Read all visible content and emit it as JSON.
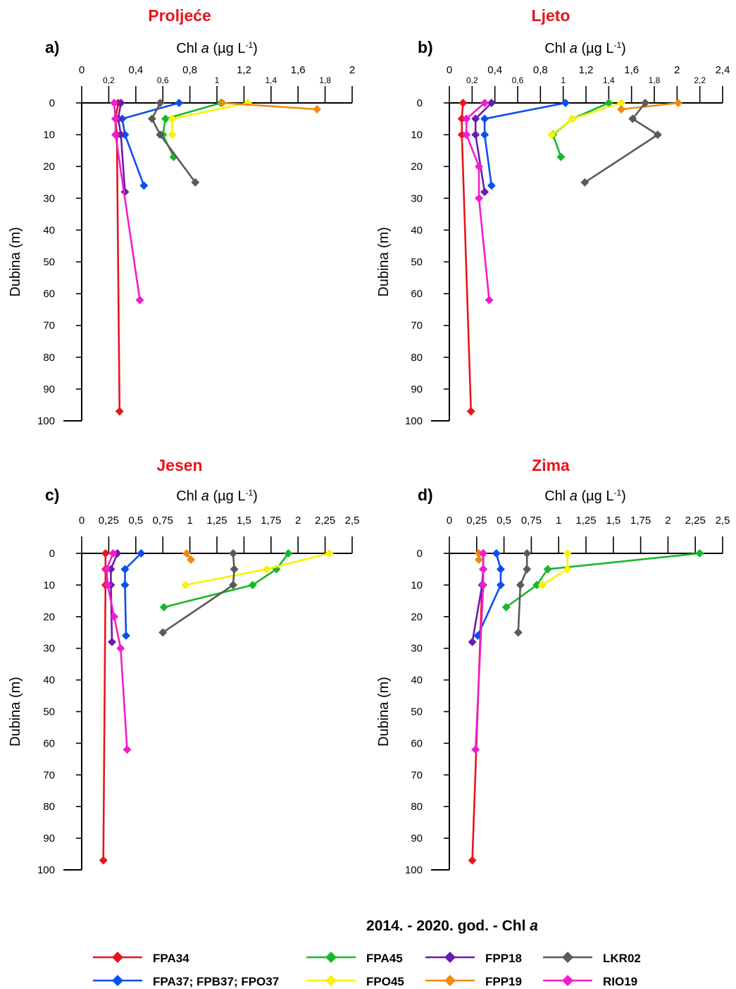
{
  "colors": {
    "FPA34": "#e8141a",
    "FPA37": "#0a4ff0",
    "FPA45": "#18b82a",
    "FPO45": "#f7f208",
    "FPP18": "#6a1bb0",
    "FPP19": "#f08a10",
    "LKR02": "#5a5a5a",
    "RIO19": "#f21ccf",
    "title": "#e8141a"
  },
  "legend": {
    "title": "2014. - 2020. god. - Chl a",
    "title_main": "2014. - 2020. god. - Chl ",
    "title_italic": "a",
    "entries": [
      {
        "key": "FPA34",
        "label": "FPA34"
      },
      {
        "key": "FPA45",
        "label": "FPA45"
      },
      {
        "key": "FPP18",
        "label": "FPP18"
      },
      {
        "key": "LKR02",
        "label": "LKR02"
      },
      {
        "key": "FPA37",
        "label": "FPA37; FPB37; FPO37"
      },
      {
        "key": "FPO45",
        "label": "FPO45"
      },
      {
        "key": "FPP19",
        "label": "FPP19"
      },
      {
        "key": "RIO19",
        "label": "RIO19"
      }
    ]
  },
  "axis_text": {
    "xlabel_main": "Chl ",
    "xlabel_italic": "a",
    "xlabel_unit": " (µg L",
    "xlabel_sup": "-1",
    "xlabel_close": ")",
    "ylabel": "Dubina (m)"
  },
  "chart_data": [
    {
      "type": "line",
      "panel": "a)",
      "title": "Proljeće",
      "xlabel": "Chl a (µg L-1)",
      "ylabel": "Dubina (m)",
      "xlim": [
        0,
        2
      ],
      "ylim": [
        0,
        100
      ],
      "x_ticks_top": [
        "0",
        "0,4",
        "0,8",
        "1,2",
        "1,6",
        "2"
      ],
      "x_ticks_bottom": [
        "0,2",
        "0,6",
        "1",
        "1,4",
        "1,8"
      ],
      "y_ticks": [
        "0",
        "10",
        "20",
        "30",
        "40",
        "50",
        "60",
        "70",
        "80",
        "90",
        "100"
      ],
      "series": [
        {
          "key": "FPA34",
          "points": [
            [
              0.27,
              0
            ],
            [
              0.25,
              5
            ],
            [
              0.26,
              10
            ],
            [
              0.28,
              97
            ]
          ]
        },
        {
          "key": "FPA37",
          "points": [
            [
              0.72,
              0
            ],
            [
              0.3,
              5
            ],
            [
              0.32,
              10
            ],
            [
              0.46,
              26
            ]
          ]
        },
        {
          "key": "FPA45",
          "points": [
            [
              1.03,
              0
            ],
            [
              0.62,
              5
            ],
            [
              0.6,
              10
            ],
            [
              0.68,
              17
            ]
          ]
        },
        {
          "key": "FPO45",
          "points": [
            [
              1.23,
              0
            ],
            [
              0.67,
              5
            ],
            [
              0.67,
              10
            ]
          ]
        },
        {
          "key": "FPP18",
          "points": [
            [
              0.29,
              0
            ],
            [
              0.27,
              5
            ],
            [
              0.29,
              10
            ],
            [
              0.32,
              28
            ]
          ]
        },
        {
          "key": "FPP19",
          "points": [
            [
              1.04,
              0
            ],
            [
              1.74,
              2
            ]
          ]
        },
        {
          "key": "LKR02",
          "points": [
            [
              0.58,
              0
            ],
            [
              0.52,
              5
            ],
            [
              0.58,
              10
            ],
            [
              0.84,
              25
            ]
          ]
        },
        {
          "key": "RIO19",
          "points": [
            [
              0.24,
              0
            ],
            [
              0.25,
              5
            ],
            [
              0.25,
              10
            ],
            [
              0.43,
              62
            ]
          ]
        }
      ]
    },
    {
      "type": "line",
      "panel": "b)",
      "title": "Ljeto",
      "xlabel": "Chl a (µg L-1)",
      "ylabel": "Dubina (m)",
      "xlim": [
        0,
        2.4
      ],
      "ylim": [
        0,
        100
      ],
      "x_ticks_top": [
        "0",
        "0,4",
        "0,8",
        "1,2",
        "1,6",
        "2",
        "2,4"
      ],
      "x_ticks_bottom": [
        "0,2",
        "0,6",
        "1",
        "1,4",
        "1,8",
        "2,2"
      ],
      "y_ticks": [
        "0",
        "10",
        "20",
        "30",
        "40",
        "50",
        "60",
        "70",
        "80",
        "90",
        "100"
      ],
      "series": [
        {
          "key": "FPA34",
          "points": [
            [
              0.12,
              0
            ],
            [
              0.11,
              5
            ],
            [
              0.11,
              10
            ],
            [
              0.19,
              97
            ]
          ]
        },
        {
          "key": "FPA37",
          "points": [
            [
              1.02,
              0
            ],
            [
              0.31,
              5
            ],
            [
              0.31,
              10
            ],
            [
              0.37,
              26
            ]
          ]
        },
        {
          "key": "FPA45",
          "points": [
            [
              1.4,
              0
            ],
            [
              1.08,
              5
            ],
            [
              0.91,
              10
            ],
            [
              0.98,
              17
            ]
          ]
        },
        {
          "key": "FPO45",
          "points": [
            [
              1.51,
              0
            ],
            [
              1.08,
              5
            ],
            [
              0.9,
              10
            ]
          ]
        },
        {
          "key": "FPP18",
          "points": [
            [
              0.37,
              0
            ],
            [
              0.23,
              5
            ],
            [
              0.23,
              10
            ],
            [
              0.31,
              28
            ]
          ]
        },
        {
          "key": "FPP19",
          "points": [
            [
              2.01,
              0
            ],
            [
              1.51,
              2
            ]
          ]
        },
        {
          "key": "LKR02",
          "points": [
            [
              1.72,
              0
            ],
            [
              1.61,
              5
            ],
            [
              1.83,
              10
            ],
            [
              1.19,
              25
            ]
          ]
        },
        {
          "key": "RIO19",
          "points": [
            [
              0.31,
              0
            ],
            [
              0.15,
              5
            ],
            [
              0.15,
              10
            ],
            [
              0.26,
              20
            ],
            [
              0.26,
              30
            ],
            [
              0.35,
              62
            ]
          ]
        }
      ]
    },
    {
      "type": "line",
      "panel": "c)",
      "title": "Jesen",
      "xlabel": "Chl a (µg L-1)",
      "ylabel": "Dubina (m)",
      "xlim": [
        0,
        2.5
      ],
      "ylim": [
        0,
        100
      ],
      "x_ticks_top": [
        "0",
        "0,25",
        "0,5",
        "0,75",
        "1",
        "1,25",
        "1,5",
        "1,75",
        "2",
        "2,25",
        "2,5"
      ],
      "x_ticks_bottom": [],
      "y_ticks": [
        "0",
        "10",
        "20",
        "30",
        "40",
        "50",
        "60",
        "70",
        "80",
        "90",
        "100"
      ],
      "series": [
        {
          "key": "FPA34",
          "points": [
            [
              0.22,
              0
            ],
            [
              0.22,
              5
            ],
            [
              0.22,
              10
            ],
            [
              0.2,
              97
            ]
          ]
        },
        {
          "key": "FPA37",
          "points": [
            [
              0.55,
              0
            ],
            [
              0.4,
              5
            ],
            [
              0.4,
              10
            ],
            [
              0.41,
              26
            ]
          ]
        },
        {
          "key": "FPA45",
          "points": [
            [
              1.91,
              0
            ],
            [
              1.8,
              5
            ],
            [
              1.58,
              10
            ],
            [
              0.76,
              17
            ]
          ]
        },
        {
          "key": "FPO45",
          "points": [
            [
              2.29,
              0
            ],
            [
              1.71,
              5
            ],
            [
              0.96,
              10
            ]
          ]
        },
        {
          "key": "FPP18",
          "points": [
            [
              0.33,
              0
            ],
            [
              0.27,
              5
            ],
            [
              0.27,
              10
            ],
            [
              0.28,
              28
            ]
          ]
        },
        {
          "key": "FPP19",
          "points": [
            [
              0.97,
              0
            ],
            [
              1.01,
              2
            ]
          ]
        },
        {
          "key": "LKR02",
          "points": [
            [
              1.4,
              0
            ],
            [
              1.41,
              5
            ],
            [
              1.4,
              10
            ],
            [
              0.75,
              25
            ]
          ]
        },
        {
          "key": "RIO19",
          "points": [
            [
              0.29,
              0
            ],
            [
              0.23,
              5
            ],
            [
              0.24,
              10
            ],
            [
              0.3,
              20
            ],
            [
              0.36,
              30
            ],
            [
              0.42,
              62
            ]
          ]
        }
      ]
    },
    {
      "type": "line",
      "panel": "d)",
      "title": "Zima",
      "xlabel": "Chl a (µg L-1)",
      "ylabel": "Dubina (m)",
      "xlim": [
        0,
        2.5
      ],
      "ylim": [
        0,
        100
      ],
      "x_ticks_top": [
        "0",
        "0,25",
        "0,5",
        "0,75",
        "1",
        "1,25",
        "1,5",
        "1,75",
        "2",
        "2,25",
        "2,5"
      ],
      "x_ticks_bottom": [],
      "y_ticks": [
        "0",
        "10",
        "20",
        "30",
        "40",
        "50",
        "60",
        "70",
        "80",
        "90",
        "100"
      ],
      "series": [
        {
          "key": "FPA34",
          "points": [
            [
              0.31,
              0
            ],
            [
              0.31,
              5
            ],
            [
              0.3,
              10
            ],
            [
              0.21,
              97
            ]
          ]
        },
        {
          "key": "FPA37",
          "points": [
            [
              0.43,
              0
            ],
            [
              0.47,
              5
            ],
            [
              0.47,
              10
            ],
            [
              0.26,
              26
            ]
          ]
        },
        {
          "key": "FPA45",
          "points": [
            [
              2.29,
              0
            ],
            [
              0.9,
              5
            ],
            [
              0.8,
              10
            ],
            [
              0.52,
              17
            ]
          ]
        },
        {
          "key": "FPO45",
          "points": [
            [
              1.08,
              0
            ],
            [
              1.08,
              5
            ],
            [
              0.85,
              10
            ]
          ]
        },
        {
          "key": "FPP18",
          "points": [
            [
              0.31,
              0
            ],
            [
              0.31,
              5
            ],
            [
              0.3,
              10
            ],
            [
              0.21,
              28
            ]
          ]
        },
        {
          "key": "FPP19",
          "points": [
            [
              0.27,
              0
            ],
            [
              0.27,
              2
            ]
          ]
        },
        {
          "key": "LKR02",
          "points": [
            [
              0.71,
              0
            ],
            [
              0.71,
              5
            ],
            [
              0.65,
              10
            ],
            [
              0.63,
              25
            ]
          ]
        },
        {
          "key": "RIO19",
          "points": [
            [
              0.31,
              0
            ],
            [
              0.31,
              5
            ],
            [
              0.31,
              10
            ],
            [
              0.24,
              62
            ]
          ]
        }
      ]
    }
  ]
}
